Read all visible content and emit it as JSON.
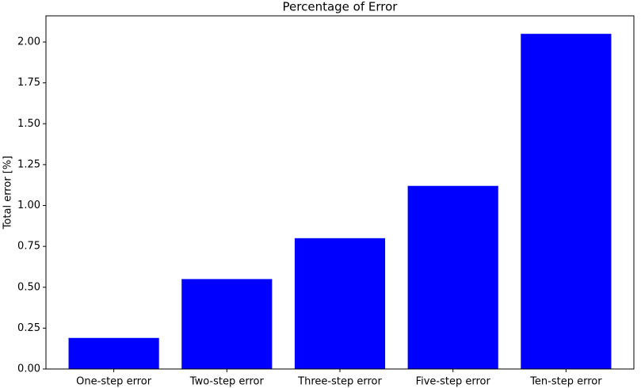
{
  "chart_data": {
    "type": "bar",
    "title": "Percentage of Error",
    "y_label": "Total error [%]",
    "categories": [
      "One-step error",
      "Two-step error",
      "Three-step error",
      "Five-step error",
      "Ten-step error"
    ],
    "values": [
      0.19,
      0.55,
      0.8,
      1.12,
      2.05
    ],
    "color": "#0000ff",
    "ylim": [
      0,
      2.16
    ],
    "yticks": [
      {
        "value": 0,
        "label": "0.00"
      },
      0.25,
      {
        "value": 0.5,
        "label": "0.50"
      },
      0.75,
      {
        "value": 1,
        "label": "1.00"
      },
      1.25,
      {
        "value": 1.5,
        "label": "1.50"
      },
      1.75,
      {
        "value": 2,
        "label": "2.00"
      }
    ]
  }
}
